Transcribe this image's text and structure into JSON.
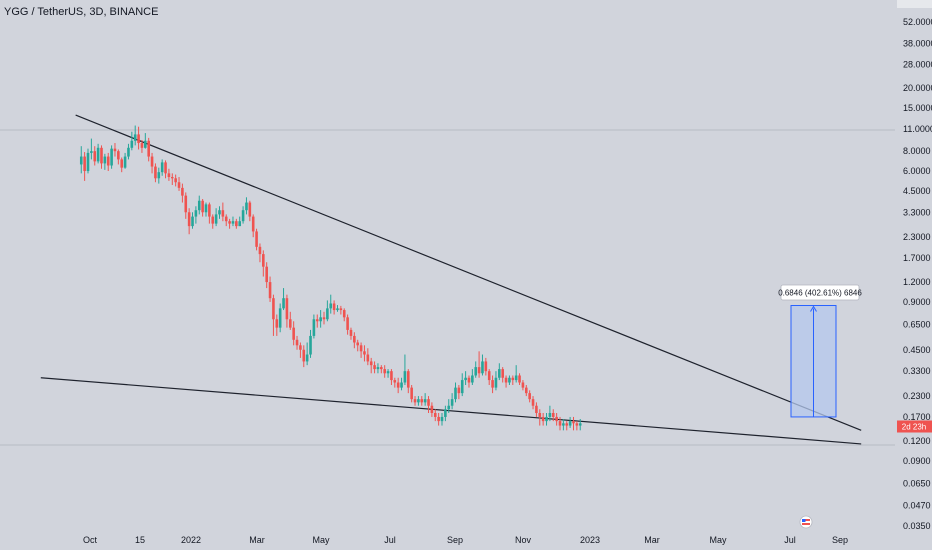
{
  "header": {
    "symbol": "YGG / TetherUS, 3D, BINANCE"
  },
  "colors": {
    "background": "#d1d4dc",
    "up": "#26a69a",
    "down": "#ef5350",
    "trendline": "#1e222d",
    "measure_fill": "#b4c8ee",
    "measure_border": "#2962ff",
    "price_label": "#ef5350"
  },
  "chart_data": {
    "type": "candlestick",
    "scale": "log",
    "y_ticks": [
      "52.0000",
      "38.0000",
      "28.0000",
      "20.0000",
      "15.0000",
      "11.0000",
      "8.0000",
      "6.0000",
      "4.5000",
      "3.3000",
      "2.3000",
      "1.7000",
      "1.2000",
      "0.9000",
      "0.6500",
      "0.4500",
      "0.3300",
      "0.2300",
      "0.1700",
      "0.1200",
      "0.0900",
      "0.0650",
      "0.0470",
      "0.0350"
    ],
    "x_ticks": [
      "Oct",
      "15",
      "2022",
      "Mar",
      "May",
      "Jul",
      "Sep",
      "Nov",
      "2023",
      "Mar",
      "May",
      "Jul",
      "Sep"
    ],
    "last_price_label": "2d 23h",
    "measure_label": "0.6846 (402.61%) 6846",
    "measure_range": [
      0.17,
      0.8546
    ],
    "trendlines": [
      {
        "name": "upper-resistance",
        "from": [
          "2021-09-20",
          13.5
        ],
        "to": [
          "2023-08-20",
          0.14
        ]
      },
      {
        "name": "lower-support",
        "from": [
          "2021-08-20",
          0.3
        ],
        "to": [
          "2023-08-20",
          0.115
        ]
      }
    ],
    "candles": [
      [
        "2021-09-25",
        6.6,
        7.4,
        5.8,
        8.6
      ],
      [
        "2021-09-28",
        7.4,
        6.0,
        5.2,
        7.9
      ],
      [
        "2021-10-01",
        6.0,
        7.8,
        5.8,
        8.3
      ],
      [
        "2021-10-04",
        7.8,
        8.0,
        7.1,
        9.6
      ],
      [
        "2021-10-07",
        8.0,
        6.9,
        6.5,
        8.6
      ],
      [
        "2021-10-10",
        6.9,
        8.4,
        6.7,
        8.9
      ],
      [
        "2021-10-13",
        8.4,
        6.7,
        6.2,
        8.7
      ],
      [
        "2021-10-16",
        6.7,
        7.4,
        6.1,
        7.7
      ],
      [
        "2021-10-19",
        7.4,
        6.5,
        6.0,
        7.8
      ],
      [
        "2021-10-22",
        6.5,
        8.3,
        6.2,
        8.7
      ],
      [
        "2021-10-25",
        8.3,
        8.0,
        7.4,
        9.0
      ],
      [
        "2021-10-28",
        8.0,
        7.1,
        6.6,
        8.2
      ],
      [
        "2021-10-31",
        7.1,
        6.3,
        5.9,
        7.3
      ],
      [
        "2021-11-03",
        6.3,
        7.4,
        6.2,
        7.8
      ],
      [
        "2021-11-06",
        7.4,
        8.4,
        7.1,
        8.9
      ],
      [
        "2021-11-09",
        8.4,
        9.3,
        8.1,
        10.6
      ],
      [
        "2021-11-12",
        9.3,
        10.2,
        8.7,
        11.6
      ],
      [
        "2021-11-15",
        10.2,
        9.0,
        8.2,
        11.4
      ],
      [
        "2021-11-18",
        9.0,
        8.4,
        7.8,
        9.4
      ],
      [
        "2021-11-21",
        8.4,
        9.3,
        8.3,
        10.4
      ],
      [
        "2021-11-24",
        9.3,
        7.4,
        6.9,
        9.7
      ],
      [
        "2021-11-27",
        7.4,
        6.4,
        5.8,
        7.8
      ],
      [
        "2021-11-30",
        6.4,
        5.4,
        5.1,
        6.7
      ],
      [
        "2021-12-03",
        5.4,
        5.9,
        5.0,
        6.3
      ],
      [
        "2021-12-06",
        5.9,
        6.8,
        5.6,
        7.1
      ],
      [
        "2021-12-09",
        6.8,
        5.8,
        5.4,
        7.0
      ],
      [
        "2021-12-12",
        5.8,
        5.5,
        5.2,
        6.2
      ],
      [
        "2021-12-15",
        5.5,
        5.4,
        4.9,
        5.8
      ],
      [
        "2021-12-18",
        5.4,
        5.1,
        4.8,
        5.7
      ],
      [
        "2021-12-21",
        5.1,
        4.7,
        4.5,
        5.5
      ],
      [
        "2021-12-24",
        4.7,
        4.2,
        3.8,
        5.0
      ],
      [
        "2021-12-27",
        4.2,
        3.3,
        3.0,
        4.4
      ],
      [
        "2021-12-30",
        3.3,
        2.7,
        2.4,
        3.5
      ],
      [
        "2022-01-02",
        2.7,
        3.1,
        2.6,
        3.3
      ],
      [
        "2022-01-05",
        3.1,
        3.4,
        2.8,
        3.6
      ],
      [
        "2022-01-08",
        3.4,
        3.9,
        3.2,
        4.2
      ],
      [
        "2022-01-11",
        3.9,
        3.3,
        3.1,
        4.0
      ],
      [
        "2022-01-14",
        3.3,
        3.7,
        3.1,
        3.8
      ],
      [
        "2022-01-17",
        3.7,
        3.1,
        2.8,
        3.8
      ],
      [
        "2022-01-20",
        3.1,
        2.8,
        2.6,
        3.2
      ],
      [
        "2022-01-23",
        2.8,
        3.2,
        2.7,
        3.5
      ],
      [
        "2022-01-26",
        3.2,
        3.4,
        3.0,
        3.6
      ],
      [
        "2022-01-29",
        3.4,
        3.1,
        2.9,
        3.8
      ],
      [
        "2022-02-01",
        3.1,
        2.9,
        2.7,
        3.2
      ],
      [
        "2022-02-04",
        2.9,
        2.8,
        2.6,
        3.0
      ],
      [
        "2022-02-07",
        2.8,
        2.9,
        2.7,
        3.1
      ],
      [
        "2022-02-10",
        2.9,
        2.7,
        2.6,
        3.0
      ],
      [
        "2022-02-13",
        2.7,
        2.9,
        2.7,
        3.1
      ],
      [
        "2022-02-16",
        2.9,
        3.4,
        2.8,
        3.6
      ],
      [
        "2022-02-19",
        3.4,
        3.8,
        3.2,
        4.1
      ],
      [
        "2022-02-22",
        3.8,
        3.1,
        2.9,
        3.9
      ],
      [
        "2022-02-25",
        3.1,
        2.5,
        2.3,
        3.2
      ],
      [
        "2022-02-28",
        2.5,
        2.0,
        1.9,
        2.6
      ],
      [
        "2022-03-03",
        2.0,
        1.8,
        1.6,
        2.1
      ],
      [
        "2022-03-06",
        1.8,
        1.5,
        1.3,
        1.9
      ],
      [
        "2022-03-09",
        1.5,
        1.2,
        1.1,
        1.6
      ],
      [
        "2022-03-12",
        1.2,
        0.95,
        0.9,
        1.3
      ],
      [
        "2022-03-15",
        0.95,
        0.7,
        0.55,
        1.0
      ],
      [
        "2022-03-18",
        0.7,
        0.62,
        0.55,
        0.75
      ],
      [
        "2022-03-21",
        0.62,
        0.82,
        0.58,
        0.88
      ],
      [
        "2022-03-24",
        0.82,
        0.95,
        0.8,
        1.1
      ],
      [
        "2022-03-27",
        0.95,
        0.7,
        0.62,
        1.0
      ],
      [
        "2022-03-30",
        0.7,
        0.62,
        0.6,
        0.78
      ],
      [
        "2022-04-02",
        0.62,
        0.52,
        0.48,
        0.68
      ],
      [
        "2022-04-05",
        0.52,
        0.48,
        0.45,
        0.55
      ],
      [
        "2022-04-08",
        0.48,
        0.45,
        0.4,
        0.5
      ],
      [
        "2022-04-11",
        0.45,
        0.38,
        0.35,
        0.48
      ],
      [
        "2022-04-14",
        0.38,
        0.42,
        0.36,
        0.5
      ],
      [
        "2022-04-17",
        0.42,
        0.55,
        0.4,
        0.6
      ],
      [
        "2022-04-20",
        0.55,
        0.7,
        0.53,
        0.75
      ],
      [
        "2022-04-23",
        0.7,
        0.68,
        0.62,
        0.75
      ],
      [
        "2022-04-26",
        0.68,
        0.72,
        0.62,
        0.8
      ],
      [
        "2022-04-29",
        0.72,
        0.7,
        0.65,
        0.78
      ],
      [
        "2022-05-02",
        0.7,
        0.82,
        0.68,
        0.92
      ],
      [
        "2022-05-05",
        0.82,
        0.88,
        0.76,
        1.0
      ],
      [
        "2022-05-08",
        0.88,
        0.8,
        0.75,
        0.92
      ],
      [
        "2022-05-11",
        0.8,
        0.82,
        0.78,
        0.86
      ],
      [
        "2022-05-14",
        0.82,
        0.8,
        0.75,
        0.85
      ],
      [
        "2022-05-17",
        0.8,
        0.72,
        0.68,
        0.82
      ],
      [
        "2022-05-20",
        0.72,
        0.6,
        0.56,
        0.75
      ],
      [
        "2022-05-23",
        0.6,
        0.55,
        0.52,
        0.62
      ],
      [
        "2022-05-26",
        0.55,
        0.5,
        0.46,
        0.58
      ],
      [
        "2022-05-29",
        0.5,
        0.48,
        0.44,
        0.52
      ],
      [
        "2022-06-01",
        0.48,
        0.44,
        0.4,
        0.5
      ],
      [
        "2022-06-04",
        0.44,
        0.42,
        0.38,
        0.48
      ],
      [
        "2022-06-07",
        0.42,
        0.38,
        0.36,
        0.46
      ],
      [
        "2022-06-10",
        0.38,
        0.36,
        0.32,
        0.4
      ],
      [
        "2022-06-13",
        0.36,
        0.34,
        0.32,
        0.38
      ],
      [
        "2022-06-16",
        0.34,
        0.35,
        0.32,
        0.37
      ],
      [
        "2022-06-19",
        0.35,
        0.34,
        0.32,
        0.36
      ],
      [
        "2022-06-22",
        0.34,
        0.32,
        0.3,
        0.36
      ],
      [
        "2022-06-25",
        0.32,
        0.33,
        0.3,
        0.34
      ],
      [
        "2022-06-28",
        0.33,
        0.29,
        0.27,
        0.34
      ],
      [
        "2022-07-01",
        0.29,
        0.28,
        0.26,
        0.3
      ],
      [
        "2022-07-04",
        0.28,
        0.26,
        0.24,
        0.3
      ],
      [
        "2022-07-07",
        0.26,
        0.28,
        0.25,
        0.3
      ],
      [
        "2022-07-10",
        0.28,
        0.33,
        0.27,
        0.42
      ],
      [
        "2022-07-13",
        0.33,
        0.26,
        0.24,
        0.34
      ],
      [
        "2022-07-16",
        0.26,
        0.22,
        0.21,
        0.27
      ],
      [
        "2022-07-19",
        0.22,
        0.21,
        0.2,
        0.23
      ],
      [
        "2022-07-22",
        0.21,
        0.22,
        0.2,
        0.23
      ],
      [
        "2022-07-25",
        0.22,
        0.21,
        0.2,
        0.23
      ],
      [
        "2022-07-28",
        0.21,
        0.22,
        0.2,
        0.24
      ],
      [
        "2022-07-31",
        0.22,
        0.2,
        0.18,
        0.23
      ],
      [
        "2022-08-03",
        0.2,
        0.18,
        0.17,
        0.21
      ],
      [
        "2022-08-06",
        0.18,
        0.17,
        0.16,
        0.19
      ],
      [
        "2022-08-09",
        0.17,
        0.16,
        0.15,
        0.18
      ],
      [
        "2022-08-12",
        0.16,
        0.17,
        0.15,
        0.18
      ],
      [
        "2022-08-15",
        0.17,
        0.19,
        0.16,
        0.2
      ],
      [
        "2022-08-18",
        0.19,
        0.2,
        0.18,
        0.22
      ],
      [
        "2022-08-21",
        0.2,
        0.22,
        0.19,
        0.24
      ],
      [
        "2022-08-24",
        0.22,
        0.26,
        0.21,
        0.28
      ],
      [
        "2022-08-27",
        0.26,
        0.24,
        0.22,
        0.27
      ],
      [
        "2022-08-30",
        0.24,
        0.29,
        0.23,
        0.32
      ],
      [
        "2022-09-02",
        0.29,
        0.3,
        0.27,
        0.33
      ],
      [
        "2022-09-05",
        0.3,
        0.28,
        0.26,
        0.31
      ],
      [
        "2022-09-08",
        0.28,
        0.31,
        0.27,
        0.34
      ],
      [
        "2022-09-11",
        0.31,
        0.35,
        0.3,
        0.38
      ],
      [
        "2022-09-14",
        0.35,
        0.32,
        0.3,
        0.44
      ],
      [
        "2022-09-17",
        0.32,
        0.38,
        0.31,
        0.42
      ],
      [
        "2022-09-20",
        0.38,
        0.33,
        0.31,
        0.4
      ],
      [
        "2022-09-23",
        0.33,
        0.29,
        0.27,
        0.34
      ],
      [
        "2022-09-26",
        0.29,
        0.26,
        0.24,
        0.31
      ],
      [
        "2022-09-29",
        0.26,
        0.3,
        0.25,
        0.33
      ],
      [
        "2022-10-02",
        0.3,
        0.34,
        0.29,
        0.37
      ],
      [
        "2022-10-05",
        0.34,
        0.3,
        0.28,
        0.35
      ],
      [
        "2022-10-08",
        0.3,
        0.28,
        0.26,
        0.31
      ],
      [
        "2022-10-11",
        0.28,
        0.3,
        0.27,
        0.31
      ],
      [
        "2022-10-14",
        0.3,
        0.29,
        0.27,
        0.31
      ],
      [
        "2022-10-17",
        0.29,
        0.31,
        0.28,
        0.36
      ],
      [
        "2022-10-20",
        0.31,
        0.28,
        0.27,
        0.32
      ],
      [
        "2022-10-23",
        0.28,
        0.26,
        0.25,
        0.29
      ],
      [
        "2022-10-26",
        0.26,
        0.24,
        0.23,
        0.27
      ],
      [
        "2022-10-29",
        0.24,
        0.22,
        0.21,
        0.25
      ],
      [
        "2022-11-01",
        0.22,
        0.2,
        0.19,
        0.23
      ],
      [
        "2022-11-04",
        0.2,
        0.18,
        0.17,
        0.21
      ],
      [
        "2022-11-07",
        0.18,
        0.17,
        0.15,
        0.19
      ],
      [
        "2022-11-10",
        0.17,
        0.16,
        0.15,
        0.18
      ],
      [
        "2022-11-13",
        0.16,
        0.17,
        0.15,
        0.18
      ],
      [
        "2022-11-16",
        0.17,
        0.18,
        0.16,
        0.2
      ],
      [
        "2022-11-19",
        0.18,
        0.17,
        0.16,
        0.19
      ],
      [
        "2022-11-22",
        0.17,
        0.16,
        0.15,
        0.18
      ],
      [
        "2022-11-25",
        0.16,
        0.15,
        0.14,
        0.17
      ],
      [
        "2022-11-28",
        0.15,
        0.155,
        0.14,
        0.165
      ],
      [
        "2022-12-01",
        0.155,
        0.15,
        0.14,
        0.16
      ],
      [
        "2022-12-04",
        0.15,
        0.16,
        0.145,
        0.17
      ],
      [
        "2022-12-07",
        0.16,
        0.155,
        0.14,
        0.17
      ],
      [
        "2022-12-10",
        0.155,
        0.15,
        0.14,
        0.16
      ],
      [
        "2022-12-13",
        0.15,
        0.155,
        0.14,
        0.165
      ]
    ]
  }
}
